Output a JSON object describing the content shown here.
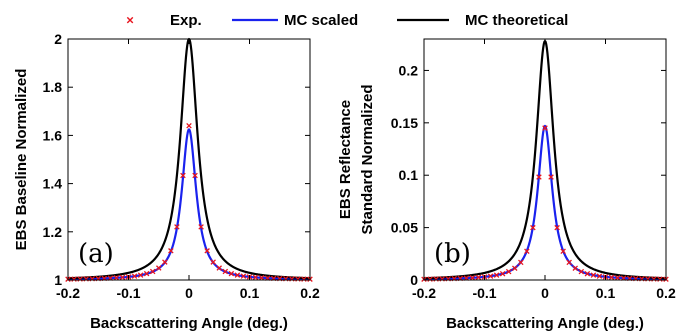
{
  "legend": {
    "items": [
      {
        "label": "Exp.",
        "marker": "x",
        "color": "#e8141e"
      },
      {
        "label": "MC scaled",
        "marker": "line",
        "color": "#1a22ee"
      },
      {
        "label": "MC theoretical",
        "marker": "line",
        "color": "#000000"
      }
    ]
  },
  "chart_data": [
    {
      "type": "line",
      "panel_label": "(a)",
      "xlabel": "Backscattering Angle (deg.)",
      "ylabel": [
        "EBS Baseline Normalized"
      ],
      "xlim": [
        -0.2,
        0.2
      ],
      "ylim": [
        1,
        2
      ],
      "xticks": [
        -0.2,
        -0.1,
        0,
        0.1,
        0.2
      ],
      "xtick_labels": [
        "-0.2",
        "-0.1",
        "0",
        "0.1",
        "0.2"
      ],
      "yticks": [
        1,
        1.2,
        1.4,
        1.6,
        1.8,
        2
      ],
      "ytick_labels": [
        "1",
        "1.2",
        "1.4",
        "1.6",
        "1.8",
        "2"
      ],
      "grid": false,
      "series": [
        {
          "name": "Exp.",
          "style": "markers",
          "color": "#e8141e",
          "peak": 0.64,
          "width": 0.0145,
          "base": 1,
          "x": [
            -0.2,
            -0.19,
            -0.18,
            -0.17,
            -0.16,
            -0.15,
            -0.14,
            -0.13,
            -0.12,
            -0.11,
            -0.1,
            -0.09,
            -0.08,
            -0.07,
            -0.06,
            -0.05,
            -0.04,
            -0.03,
            -0.02,
            -0.01,
            0,
            0.01,
            0.02,
            0.03,
            0.04,
            0.05,
            0.06,
            0.07,
            0.08,
            0.09,
            0.1,
            0.11,
            0.12,
            0.13,
            0.14,
            0.15,
            0.16,
            0.17,
            0.18,
            0.19,
            0.2
          ]
        },
        {
          "name": "MC scaled",
          "style": "line",
          "color": "#1a22ee",
          "peak": 0.625,
          "width": 0.0145,
          "base": 1
        },
        {
          "name": "MC theoretical",
          "style": "line",
          "color": "#000000",
          "peak": 1.0,
          "width": 0.0175,
          "base": 1
        }
      ]
    },
    {
      "type": "line",
      "panel_label": "(b)",
      "xlabel": "Backscattering Angle (deg.)",
      "ylabel": [
        "EBS Reflectance",
        "Standard Normalized"
      ],
      "xlim": [
        -0.2,
        0.2
      ],
      "ylim": [
        0,
        0.23
      ],
      "xticks": [
        -0.2,
        -0.1,
        0,
        0.1,
        0.2
      ],
      "xtick_labels": [
        "-0.2",
        "-0.1",
        "0",
        "0.1",
        "0.2"
      ],
      "yticks": [
        0,
        0.05,
        0.1,
        0.15,
        0.2
      ],
      "ytick_labels": [
        "0",
        "0.05",
        "0.1",
        "0.15",
        "0.2"
      ],
      "grid": false,
      "series": [
        {
          "name": "Exp.",
          "style": "markers",
          "color": "#e8141e",
          "peak": 0.145,
          "width": 0.0145,
          "base": 0,
          "x": [
            -0.2,
            -0.19,
            -0.18,
            -0.17,
            -0.16,
            -0.15,
            -0.14,
            -0.13,
            -0.12,
            -0.11,
            -0.1,
            -0.09,
            -0.08,
            -0.07,
            -0.06,
            -0.05,
            -0.04,
            -0.03,
            -0.02,
            -0.01,
            0,
            0.01,
            0.02,
            0.03,
            0.04,
            0.05,
            0.06,
            0.07,
            0.08,
            0.09,
            0.1,
            0.11,
            0.12,
            0.13,
            0.14,
            0.15,
            0.16,
            0.17,
            0.18,
            0.19,
            0.2
          ]
        },
        {
          "name": "MC scaled",
          "style": "line",
          "color": "#1a22ee",
          "peak": 0.147,
          "width": 0.0145,
          "base": 0
        },
        {
          "name": "MC theoretical",
          "style": "line",
          "color": "#000000",
          "peak": 0.228,
          "width": 0.0175,
          "base": 0
        }
      ]
    }
  ]
}
